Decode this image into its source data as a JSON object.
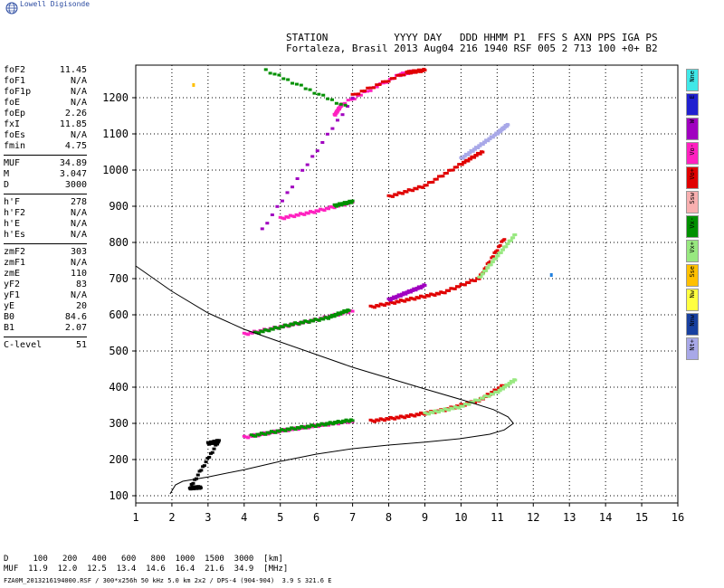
{
  "brand": {
    "name": "Lowell Digisonde"
  },
  "header": {
    "line1": "STATION           YYYY DAY   DDD HHMM P1  FFS S AXN PPS IGA PS",
    "line2": "Fortaleza, Brasil 2013 Aug04 216 1940 RSF 005 2 713 100 +0+ B2"
  },
  "params": [
    {
      "k": "foF2",
      "v": "11.45"
    },
    {
      "k": "foF1",
      "v": "N/A"
    },
    {
      "k": "foF1p",
      "v": "N/A"
    },
    {
      "k": "foE",
      "v": "N/A"
    },
    {
      "k": "foEp",
      "v": "2.26"
    },
    {
      "k": "fxI",
      "v": "11.85"
    },
    {
      "k": "foEs",
      "v": "N/A"
    },
    {
      "k": "fmin",
      "v": "4.75"
    },
    {
      "sep": true
    },
    {
      "k": "MUF",
      "v": "34.89"
    },
    {
      "k": "M",
      "v": "3.047"
    },
    {
      "k": "D",
      "v": "3000"
    },
    {
      "sep": true
    },
    {
      "k": "h'F",
      "v": "278"
    },
    {
      "k": "h'F2",
      "v": "N/A"
    },
    {
      "k": "h'E",
      "v": "N/A"
    },
    {
      "k": "h'Es",
      "v": "N/A"
    },
    {
      "sep": true
    },
    {
      "k": "zmF2",
      "v": "303"
    },
    {
      "k": "zmF1",
      "v": "N/A"
    },
    {
      "k": "zmE",
      "v": "110"
    },
    {
      "k": "yF2",
      "v": "83"
    },
    {
      "k": "yF1",
      "v": "N/A"
    },
    {
      "k": "yE",
      "v": "20"
    },
    {
      "k": "B0",
      "v": "84.6"
    },
    {
      "k": "B1",
      "v": "2.07"
    },
    {
      "sep": true
    },
    {
      "k": "C-level",
      "v": "51"
    }
  ],
  "legend": [
    {
      "label": "Nne",
      "color": "#40e8e8"
    },
    {
      "label": "E",
      "color": "#2020d0"
    },
    {
      "label": "W",
      "color": "#a000c0"
    },
    {
      "label": "Vo-",
      "color": "#ff20c0"
    },
    {
      "label": "Vo+",
      "color": "#e00000"
    },
    {
      "label": "Ssw",
      "color": "#f8b0b0"
    },
    {
      "label": "Vx-",
      "color": "#009000"
    },
    {
      "label": "Vx+",
      "color": "#98e880"
    },
    {
      "label": "Sse",
      "color": "#ffc000"
    },
    {
      "label": "Nw",
      "color": "#ffff40"
    },
    {
      "label": "Nnw",
      "color": "#1840a0"
    },
    {
      "label": "Nt+",
      "color": "#a8a8e8"
    }
  ],
  "footer": {
    "d_line": "D     100   200   400   600   800  1000  1500  3000  [km]",
    "muf_line": "MUF  11.9  12.0  12.5  13.4  14.6  16.4  21.6  34.9  [MHz]",
    "file_line": "FZA0M_2013216194000.RSF / 300*x256h 50 kHz 5.0 km 2x2 / DPS-4 (904-904)  3.9 S 321.6 E"
  },
  "chart_data": {
    "type": "scatter",
    "xlim": [
      1,
      16
    ],
    "ylim": [
      80,
      1290
    ],
    "xticks": [
      1,
      2,
      3,
      4,
      5,
      6,
      7,
      8,
      9,
      10,
      11,
      12,
      13,
      14,
      15,
      16
    ],
    "yticks": [
      100,
      200,
      300,
      400,
      500,
      600,
      700,
      800,
      900,
      1000,
      1100,
      1200
    ],
    "grid": true,
    "profile": {
      "x": [
        1.95,
        2.1,
        2.3,
        3.0,
        4.0,
        5.0,
        6.0,
        7.0,
        8.0,
        9.0,
        10.0,
        10.8,
        11.2,
        11.45,
        11.3,
        10.9,
        10.2,
        9.0,
        8.0,
        7.0,
        6.0,
        5.0,
        4.0,
        3.0,
        2.0,
        1.0
      ],
      "y": [
        105,
        130,
        140,
        152,
        172,
        195,
        215,
        230,
        240,
        248,
        258,
        270,
        282,
        300,
        318,
        338,
        360,
        395,
        425,
        455,
        490,
        525,
        560,
        605,
        665,
        735
      ]
    },
    "series": [
      {
        "color": "#ff20c0",
        "x": [
          4.0,
          5.0,
          6.0,
          7.0
        ],
        "y": [
          260,
          278,
          292,
          305
        ]
      },
      {
        "color": "#009000",
        "x": [
          4.2,
          5.2,
          6.2,
          7.0
        ],
        "y": [
          264,
          282,
          296,
          308
        ]
      },
      {
        "color": "#e00000",
        "x": [
          7.5,
          8.5,
          9.5,
          10.5,
          11.2
        ],
        "y": [
          305,
          318,
          335,
          362,
          405
        ]
      },
      {
        "color": "#98e880",
        "x": [
          9.0,
          10.0,
          11.0,
          11.5
        ],
        "y": [
          325,
          345,
          385,
          420
        ]
      },
      {
        "color": "#000000",
        "x": [
          3.0,
          3.3,
          2.5,
          2.8
        ],
        "y": [
          243,
          250,
          120,
          122
        ]
      },
      {
        "color": "#ff20c0",
        "x": [
          4.0,
          5.0,
          6.0,
          7.0
        ],
        "y": [
          545,
          565,
          585,
          610
        ]
      },
      {
        "color": "#009000",
        "x": [
          4.3,
          5.3,
          6.3,
          6.9
        ],
        "y": [
          548,
          572,
          590,
          612
        ]
      },
      {
        "color": "#e00000",
        "x": [
          7.5,
          8.5,
          9.5,
          10.5,
          11.2
        ],
        "y": [
          620,
          640,
          660,
          700,
          810
        ]
      },
      {
        "color": "#a000c0",
        "x": [
          8.0,
          8.5,
          9.0
        ],
        "y": [
          640,
          660,
          680
        ]
      },
      {
        "color": "#98e880",
        "x": [
          10.5,
          11.0,
          11.5
        ],
        "y": [
          700,
          760,
          820
        ]
      },
      {
        "color": "#ff20c0",
        "x": [
          5.0,
          6.0,
          7.0
        ],
        "y": [
          865,
          885,
          910
        ]
      },
      {
        "color": "#009000",
        "x": [
          6.5,
          7.0
        ],
        "y": [
          900,
          912
        ]
      },
      {
        "color": "#e00000",
        "x": [
          8.0,
          9.0,
          10.0,
          10.6
        ],
        "y": [
          925,
          955,
          1015,
          1050
        ]
      },
      {
        "color": "#a8a8e8",
        "x": [
          10.0,
          10.5,
          11.0,
          11.3
        ],
        "y": [
          1030,
          1065,
          1100,
          1125
        ]
      },
      {
        "color": "#ff20c0",
        "x": [
          6.5,
          6.7,
          8.3,
          8.7
        ],
        "y": [
          1150,
          1180,
          1262,
          1272
        ]
      },
      {
        "color": "#e00000",
        "x": [
          7.0,
          8.5,
          9.0
        ],
        "y": [
          1205,
          1268,
          1275
        ]
      },
      {
        "color": "#a000c0",
        "x": [
          7.0,
          4.5
        ],
        "y": [
          1195,
          835
        ]
      },
      {
        "color": "#009000",
        "x": [
          6.8,
          4.6
        ],
        "y": [
          1175,
          1275
        ]
      },
      {
        "color": "#ffc000",
        "x": [
          2.6
        ],
        "y": [
          1235
        ]
      },
      {
        "color": "#2080e0",
        "x": [
          12.5
        ],
        "y": [
          710
        ]
      }
    ]
  }
}
